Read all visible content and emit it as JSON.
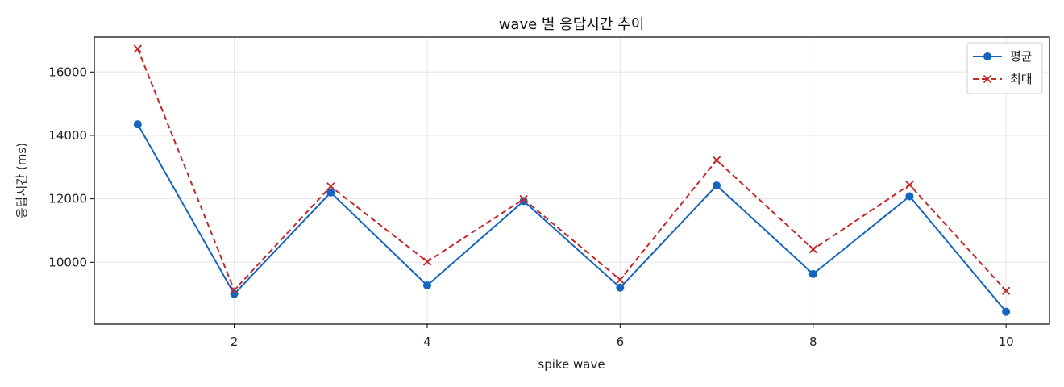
{
  "chart_data": {
    "type": "line",
    "title": "wave 별 응답시간 추이",
    "xlabel": "spike wave",
    "ylabel": "응답시간 (ms)",
    "x": [
      1,
      2,
      3,
      4,
      5,
      6,
      7,
      8,
      9,
      10
    ],
    "xlim": [
      0.55,
      10.45
    ],
    "ylim": [
      8050,
      17100
    ],
    "x_ticks": [
      2,
      4,
      6,
      8,
      10
    ],
    "y_ticks": [
      10000,
      12000,
      14000,
      16000
    ],
    "grid": true,
    "legend_position": "top-right",
    "series": [
      {
        "name": "평균",
        "values": [
          14350,
          9000,
          12200,
          9270,
          11930,
          9200,
          12420,
          9630,
          12080,
          8440
        ],
        "color": "#1565c0",
        "line_style": "solid",
        "marker": "circle"
      },
      {
        "name": "최대",
        "values": [
          16730,
          9120,
          12390,
          10020,
          11990,
          9450,
          13220,
          10410,
          12440,
          9100
        ],
        "color": "#c62828",
        "line_style": "dashed",
        "marker": "x"
      }
    ]
  }
}
